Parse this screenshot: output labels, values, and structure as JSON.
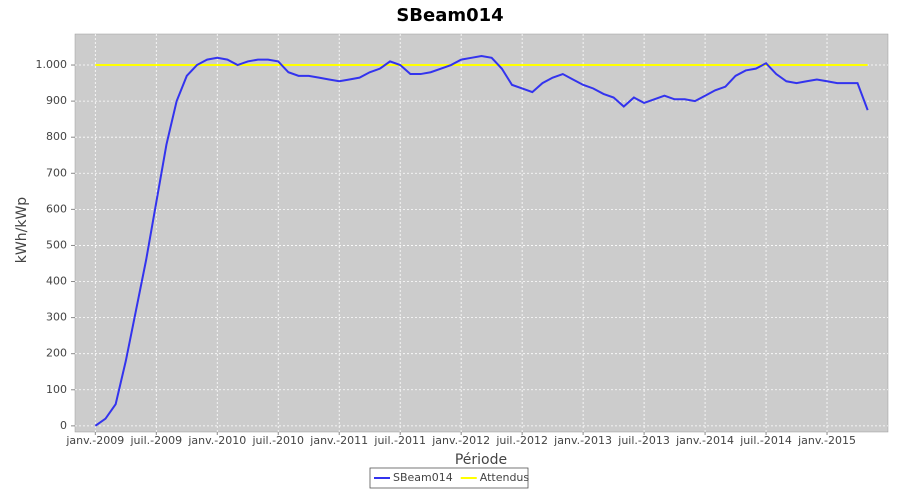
{
  "chart_data": {
    "type": "line",
    "title": "SBeam014",
    "xlabel": "Période",
    "ylabel": "kWh/kWp",
    "x": [
      "2009-01",
      "2009-02",
      "2009-03",
      "2009-04",
      "2009-05",
      "2009-06",
      "2009-07",
      "2009-08",
      "2009-09",
      "2009-10",
      "2009-11",
      "2009-12",
      "2010-01",
      "2010-02",
      "2010-03",
      "2010-04",
      "2010-05",
      "2010-06",
      "2010-07",
      "2010-08",
      "2010-09",
      "2010-10",
      "2010-11",
      "2010-12",
      "2011-01",
      "2011-02",
      "2011-03",
      "2011-04",
      "2011-05",
      "2011-06",
      "2011-07",
      "2011-08",
      "2011-09",
      "2011-10",
      "2011-11",
      "2011-12",
      "2012-01",
      "2012-02",
      "2012-03",
      "2012-04",
      "2012-05",
      "2012-06",
      "2012-07",
      "2012-08",
      "2012-09",
      "2012-10",
      "2012-11",
      "2012-12",
      "2013-01",
      "2013-02",
      "2013-03",
      "2013-04",
      "2013-05",
      "2013-06",
      "2013-07",
      "2013-08",
      "2013-09",
      "2013-10",
      "2013-11",
      "2013-12",
      "2014-01",
      "2014-02",
      "2014-03",
      "2014-04",
      "2014-05",
      "2014-06",
      "2014-07",
      "2014-08",
      "2014-09",
      "2014-10",
      "2014-11",
      "2014-12",
      "2015-01",
      "2015-02",
      "2015-03",
      "2015-04",
      "2015-05"
    ],
    "series": [
      {
        "name": "SBeam014",
        "color": "#3333ee",
        "values": [
          0,
          20,
          60,
          180,
          320,
          460,
          620,
          780,
          900,
          970,
          1000,
          1015,
          1020,
          1015,
          1000,
          1010,
          1015,
          1015,
          1010,
          980,
          970,
          970,
          965,
          960,
          955,
          960,
          965,
          980,
          990,
          1010,
          1000,
          975,
          975,
          980,
          990,
          1000,
          1015,
          1020,
          1025,
          1020,
          990,
          945,
          935,
          925,
          950,
          965,
          975,
          960,
          945,
          935,
          920,
          910,
          885,
          910,
          895,
          905,
          915,
          905,
          905,
          900,
          915,
          930,
          940,
          970,
          985,
          990,
          1005,
          975,
          955,
          950,
          955,
          960,
          955,
          950,
          950,
          950,
          875
        ]
      },
      {
        "name": "Attendus",
        "color": "#ffff00",
        "values": [
          1000,
          1000,
          1000,
          1000,
          1000,
          1000,
          1000,
          1000,
          1000,
          1000,
          1000,
          1000,
          1000,
          1000,
          1000,
          1000,
          1000,
          1000,
          1000,
          1000,
          1000,
          1000,
          1000,
          1000,
          1000,
          1000,
          1000,
          1000,
          1000,
          1000,
          1000,
          1000,
          1000,
          1000,
          1000,
          1000,
          1000,
          1000,
          1000,
          1000,
          1000,
          1000,
          1000,
          1000,
          1000,
          1000,
          1000,
          1000,
          1000,
          1000,
          1000,
          1000,
          1000,
          1000,
          1000,
          1000,
          1000,
          1000,
          1000,
          1000,
          1000,
          1000,
          1000,
          1000,
          1000,
          1000,
          1000,
          1000,
          1000,
          1000,
          1000,
          1000,
          1000,
          1000,
          1000,
          1000,
          1000
        ]
      }
    ],
    "xlim": [
      "2008-11",
      "2015-07"
    ],
    "xticks": [
      {
        "value": "2009-01",
        "label": "janv.-2009"
      },
      {
        "value": "2009-07",
        "label": "juil.-2009"
      },
      {
        "value": "2010-01",
        "label": "janv.-2010"
      },
      {
        "value": "2010-07",
        "label": "juil.-2010"
      },
      {
        "value": "2011-01",
        "label": "janv.-2011"
      },
      {
        "value": "2011-07",
        "label": "juil.-2011"
      },
      {
        "value": "2012-01",
        "label": "janv.-2012"
      },
      {
        "value": "2012-07",
        "label": "juil.-2012"
      },
      {
        "value": "2013-01",
        "label": "janv.-2013"
      },
      {
        "value": "2013-07",
        "label": "juil.-2013"
      },
      {
        "value": "2014-01",
        "label": "janv.-2014"
      },
      {
        "value": "2014-07",
        "label": "juil.-2014"
      },
      {
        "value": "2015-01",
        "label": "janv.-2015"
      }
    ],
    "ylim": [
      -17,
      1086
    ],
    "yticks": [
      0,
      100,
      200,
      300,
      400,
      500,
      600,
      700,
      800,
      900,
      {
        "value": 1000,
        "label": "1.000"
      }
    ],
    "grid": true,
    "legend": "bottom"
  }
}
